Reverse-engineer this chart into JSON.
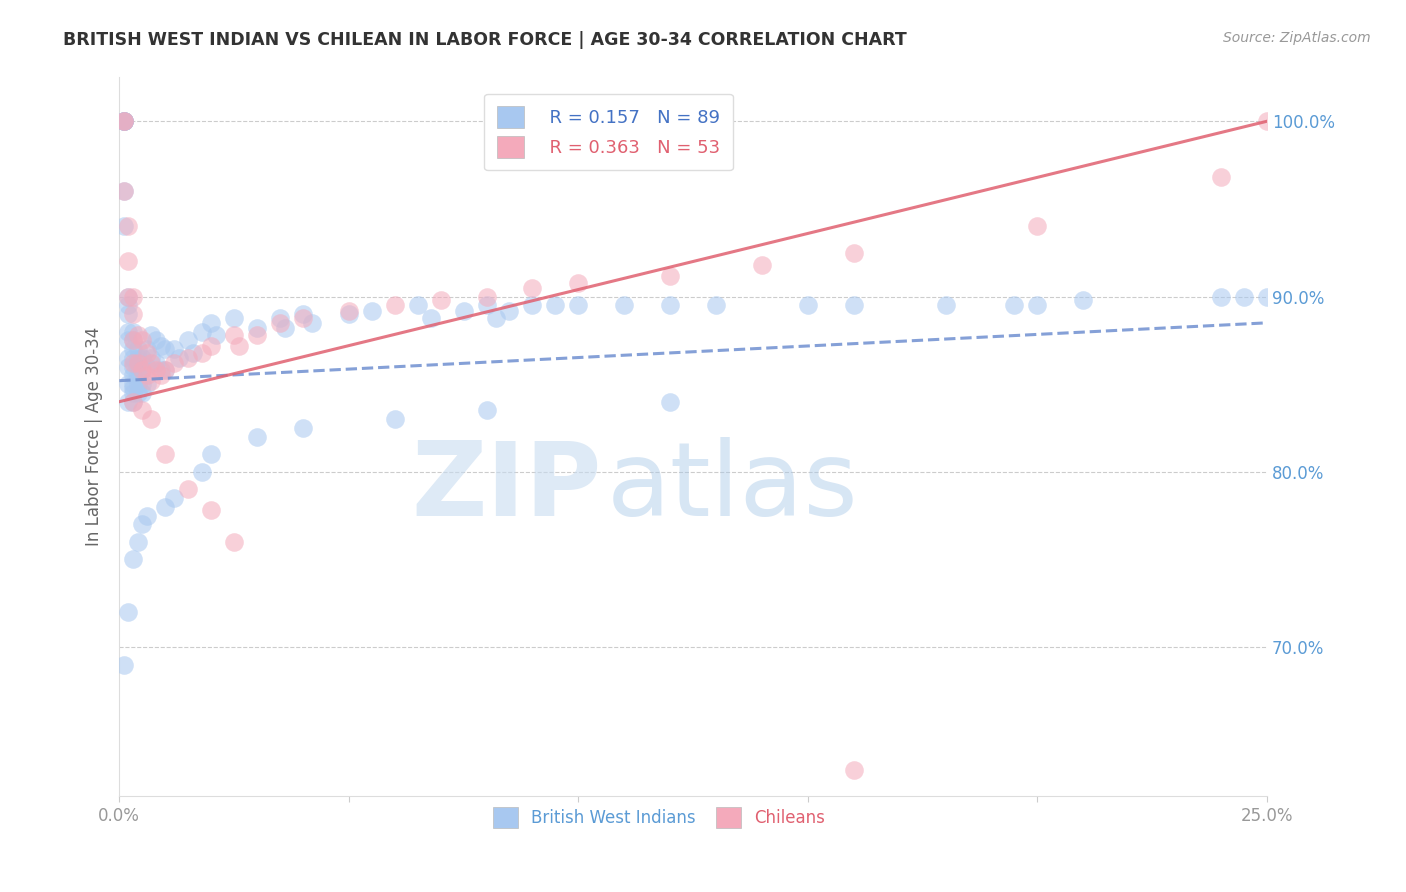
{
  "title": "BRITISH WEST INDIAN VS CHILEAN IN LABOR FORCE | AGE 30-34 CORRELATION CHART",
  "source": "Source: ZipAtlas.com",
  "ylabel": "In Labor Force | Age 30-34",
  "xlim": [
    0.0,
    0.25
  ],
  "ylim": [
    0.615,
    1.025
  ],
  "x_tick_positions": [
    0.0,
    0.05,
    0.1,
    0.15,
    0.2,
    0.25
  ],
  "x_tick_labels": [
    "0.0%",
    "",
    "",
    "",
    "",
    "25.0%"
  ],
  "y_tick_positions": [
    0.7,
    0.8,
    0.9,
    1.0
  ],
  "y_tick_labels": [
    "70.0%",
    "80.0%",
    "90.0%",
    "100.0%"
  ],
  "legend_blue_r": "0.157",
  "legend_blue_n": "89",
  "legend_pink_r": "0.363",
  "legend_pink_n": "53",
  "blue_color": "#A8C8F0",
  "pink_color": "#F4AABB",
  "blue_line_color": "#7090D0",
  "pink_line_color": "#E06070",
  "blue_line_style": "--",
  "pink_line_style": "-",
  "blue_x": [
    0.001,
    0.001,
    0.001,
    0.001,
    0.001,
    0.001,
    0.001,
    0.001,
    0.002,
    0.002,
    0.002,
    0.002,
    0.002,
    0.002,
    0.002,
    0.002,
    0.002,
    0.003,
    0.003,
    0.003,
    0.003,
    0.003,
    0.003,
    0.003,
    0.003,
    0.003,
    0.003,
    0.004,
    0.004,
    0.004,
    0.004,
    0.004,
    0.004,
    0.005,
    0.005,
    0.005,
    0.005,
    0.006,
    0.006,
    0.006,
    0.007,
    0.007,
    0.008,
    0.008,
    0.009,
    0.009,
    0.01,
    0.01,
    0.012,
    0.013,
    0.015,
    0.016,
    0.018,
    0.02,
    0.021,
    0.025,
    0.03,
    0.035,
    0.036,
    0.04,
    0.042,
    0.05,
    0.055,
    0.065,
    0.068,
    0.075,
    0.08,
    0.082,
    0.085,
    0.09,
    0.095,
    0.1,
    0.11,
    0.12,
    0.13,
    0.15,
    0.16,
    0.18,
    0.195,
    0.2,
    0.21,
    0.24,
    0.245,
    0.25
  ],
  "blue_y": [
    1.0,
    1.0,
    1.0,
    1.0,
    1.0,
    1.0,
    0.96,
    0.94,
    0.9,
    0.895,
    0.89,
    0.88,
    0.875,
    0.865,
    0.86,
    0.85,
    0.84,
    0.88,
    0.875,
    0.87,
    0.865,
    0.86,
    0.855,
    0.85,
    0.848,
    0.845,
    0.84,
    0.87,
    0.865,
    0.86,
    0.855,
    0.85,
    0.845,
    0.865,
    0.858,
    0.85,
    0.845,
    0.87,
    0.86,
    0.85,
    0.878,
    0.865,
    0.875,
    0.862,
    0.872,
    0.858,
    0.87,
    0.858,
    0.87,
    0.865,
    0.875,
    0.868,
    0.88,
    0.885,
    0.878,
    0.888,
    0.882,
    0.888,
    0.882,
    0.89,
    0.885,
    0.89,
    0.892,
    0.895,
    0.888,
    0.892,
    0.895,
    0.888,
    0.892,
    0.895,
    0.895,
    0.895,
    0.895,
    0.895,
    0.895,
    0.895,
    0.895,
    0.895,
    0.895,
    0.895,
    0.898,
    0.9,
    0.9,
    0.9
  ],
  "blue_x_low": [
    0.001,
    0.002,
    0.003,
    0.004,
    0.005,
    0.006,
    0.01,
    0.012,
    0.018,
    0.02,
    0.03,
    0.04,
    0.06,
    0.08,
    0.12
  ],
  "blue_y_low": [
    0.69,
    0.72,
    0.75,
    0.76,
    0.77,
    0.775,
    0.78,
    0.785,
    0.8,
    0.81,
    0.82,
    0.825,
    0.83,
    0.835,
    0.84
  ],
  "pink_x": [
    0.001,
    0.001,
    0.001,
    0.002,
    0.002,
    0.002,
    0.003,
    0.003,
    0.003,
    0.003,
    0.004,
    0.004,
    0.005,
    0.005,
    0.006,
    0.006,
    0.007,
    0.007,
    0.008,
    0.009,
    0.01,
    0.012,
    0.015,
    0.018,
    0.02,
    0.025,
    0.026,
    0.03,
    0.035,
    0.04,
    0.05,
    0.06,
    0.07,
    0.08,
    0.09,
    0.1,
    0.12,
    0.14,
    0.16,
    0.2,
    0.24,
    0.25
  ],
  "pink_y": [
    1.0,
    1.0,
    0.96,
    0.94,
    0.92,
    0.9,
    0.9,
    0.89,
    0.875,
    0.862,
    0.878,
    0.862,
    0.875,
    0.858,
    0.868,
    0.855,
    0.862,
    0.852,
    0.858,
    0.855,
    0.858,
    0.862,
    0.865,
    0.868,
    0.872,
    0.878,
    0.872,
    0.878,
    0.885,
    0.888,
    0.892,
    0.895,
    0.898,
    0.9,
    0.905,
    0.908,
    0.912,
    0.918,
    0.925,
    0.94,
    0.968,
    1.0
  ],
  "pink_x_low": [
    0.003,
    0.005,
    0.007,
    0.01,
    0.015,
    0.02,
    0.025,
    0.16
  ],
  "pink_y_low": [
    0.84,
    0.835,
    0.83,
    0.81,
    0.79,
    0.778,
    0.76,
    0.63
  ]
}
